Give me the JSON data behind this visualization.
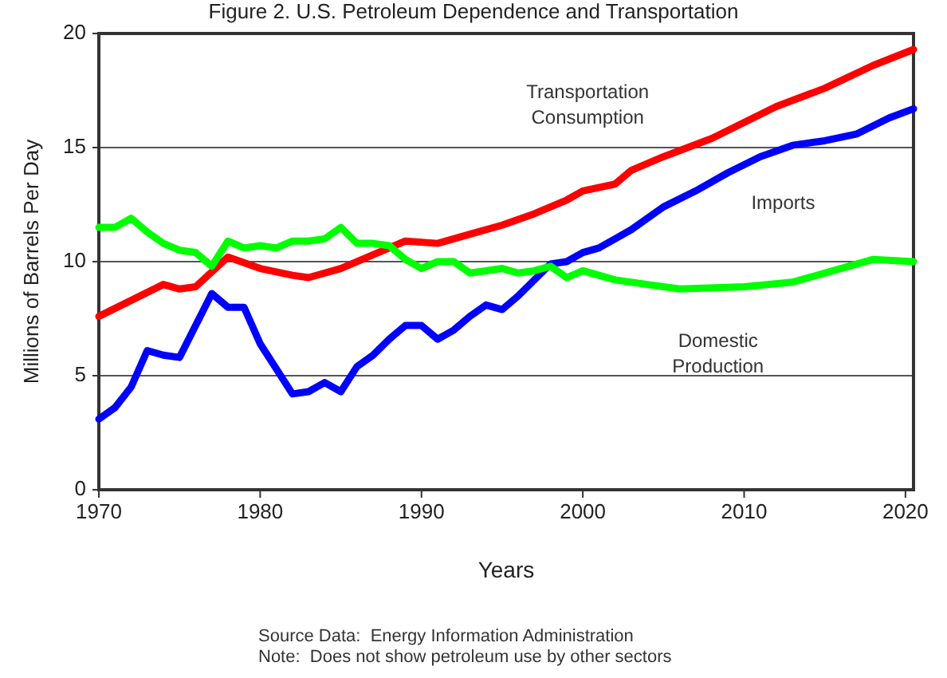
{
  "chart_data": {
    "type": "line",
    "title": "Figure 2. U.S. Petroleum Dependence and Transportation",
    "xlabel": "Years",
    "ylabel": "Millions of Barrels Per Day",
    "xlim": [
      1970,
      2020.5
    ],
    "xticks": [
      1970,
      1980,
      1990,
      2000,
      2010,
      2020
    ],
    "ylim": [
      0,
      20
    ],
    "yticks": [
      0,
      5,
      10,
      15,
      20
    ],
    "grid": "y",
    "marker": "none",
    "line_style": "solid",
    "series": [
      {
        "name": "Transportation Consumption",
        "color": "#ff0000",
        "x": [
          1970,
          1972,
          1974,
          1975,
          1976,
          1978,
          1980,
          1982,
          1983,
          1985,
          1987,
          1989,
          1991,
          1993,
          1995,
          1997,
          1999,
          2000,
          2002,
          2003,
          2005,
          2008,
          2010,
          2012,
          2015,
          2018,
          2020.5
        ],
        "values": [
          7.6,
          8.3,
          9.0,
          8.8,
          8.9,
          10.2,
          9.7,
          9.4,
          9.3,
          9.7,
          10.3,
          10.9,
          10.8,
          11.2,
          11.6,
          12.1,
          12.7,
          13.1,
          13.4,
          14.0,
          14.6,
          15.4,
          16.1,
          16.8,
          17.6,
          18.6,
          19.3
        ]
      },
      {
        "name": "Imports",
        "color": "#0000ff",
        "x": [
          1970,
          1971,
          1972,
          1973,
          1974,
          1975,
          1976,
          1977,
          1978,
          1979,
          1980,
          1981,
          1982,
          1983,
          1984,
          1985,
          1986,
          1987,
          1988,
          1989,
          1990,
          1991,
          1992,
          1993,
          1994,
          1995,
          1996,
          1997,
          1998,
          1999,
          2000,
          2001,
          2003,
          2005,
          2007,
          2009,
          2011,
          2013,
          2015,
          2017,
          2019,
          2020.5
        ],
        "values": [
          3.1,
          3.6,
          4.5,
          6.1,
          5.9,
          5.8,
          7.2,
          8.6,
          8.0,
          8.0,
          6.4,
          5.3,
          4.2,
          4.3,
          4.7,
          4.3,
          5.4,
          5.9,
          6.6,
          7.2,
          7.2,
          6.6,
          7.0,
          7.6,
          8.1,
          7.9,
          8.5,
          9.2,
          9.9,
          10.0,
          10.4,
          10.6,
          11.4,
          12.4,
          13.1,
          13.9,
          14.6,
          15.1,
          15.3,
          15.6,
          16.3,
          16.7
        ]
      },
      {
        "name": "Domestic Production",
        "color": "#00ff00",
        "x": [
          1970,
          1971,
          1972,
          1973,
          1974,
          1975,
          1976,
          1977,
          1978,
          1979,
          1980,
          1981,
          1982,
          1983,
          1984,
          1985,
          1986,
          1987,
          1988,
          1989,
          1990,
          1991,
          1992,
          1993,
          1994,
          1995,
          1996,
          1997,
          1998,
          1999,
          2000,
          2002,
          2004,
          2006,
          2010,
          2013,
          2016,
          2018,
          2020.5
        ],
        "values": [
          11.5,
          11.5,
          11.9,
          11.3,
          10.8,
          10.5,
          10.4,
          9.8,
          10.9,
          10.6,
          10.7,
          10.6,
          10.9,
          10.9,
          11.0,
          11.5,
          10.8,
          10.8,
          10.7,
          10.1,
          9.7,
          10.0,
          10.0,
          9.5,
          9.6,
          9.7,
          9.5,
          9.6,
          9.8,
          9.3,
          9.6,
          9.2,
          9.0,
          8.8,
          8.9,
          9.1,
          9.7,
          10.1,
          10.0
        ]
      }
    ],
    "annotations": [
      "Source Data:  Energy Information Administration",
      "Note:  Does not show petroleum use by other sectors"
    ]
  }
}
